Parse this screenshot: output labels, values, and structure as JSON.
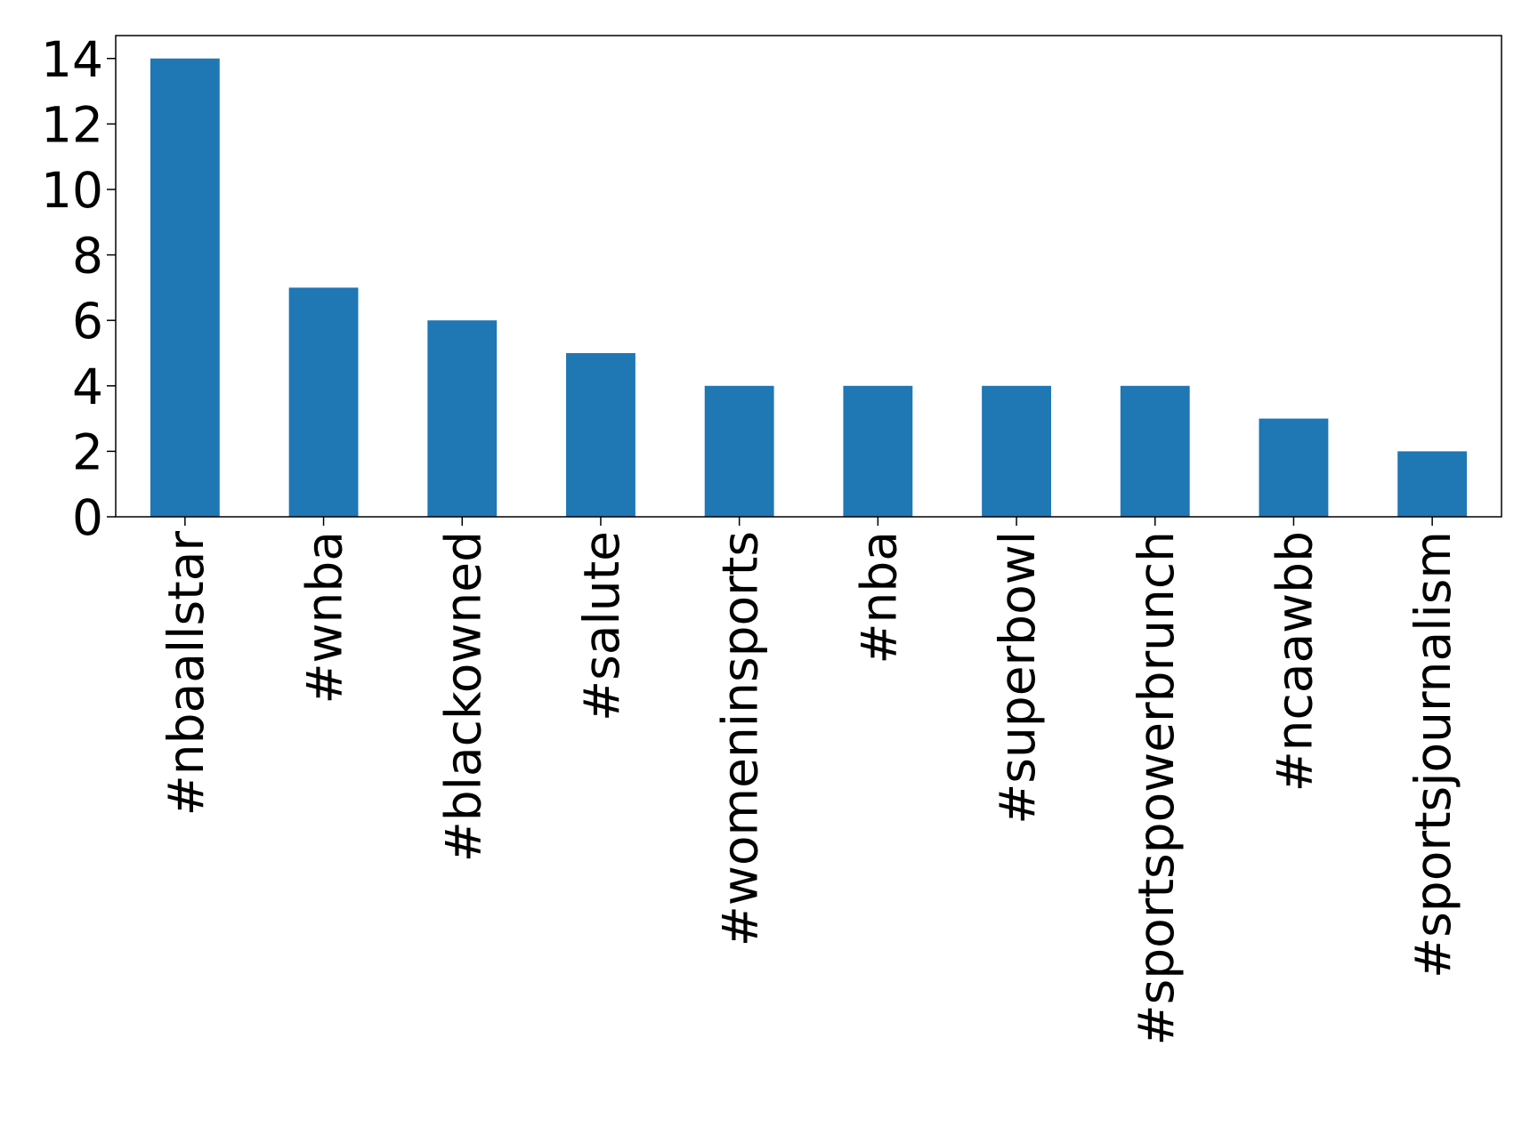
{
  "chart_data": {
    "type": "bar",
    "categories": [
      "#nbaallstar",
      "#wnba",
      "#blackowned",
      "#salute",
      "#womeninsports",
      "#nba",
      "#superbowl",
      "#sportspowerbrunch",
      "#ncaawbb",
      "#sportsjournalism"
    ],
    "values": [
      14,
      7,
      6,
      5,
      4,
      4,
      4,
      4,
      3,
      2
    ],
    "color": "#1f77b4",
    "ylim": [
      0,
      14.7
    ],
    "yticks": [
      0,
      2,
      4,
      6,
      8,
      10,
      12,
      14
    ],
    "grid": false
  }
}
